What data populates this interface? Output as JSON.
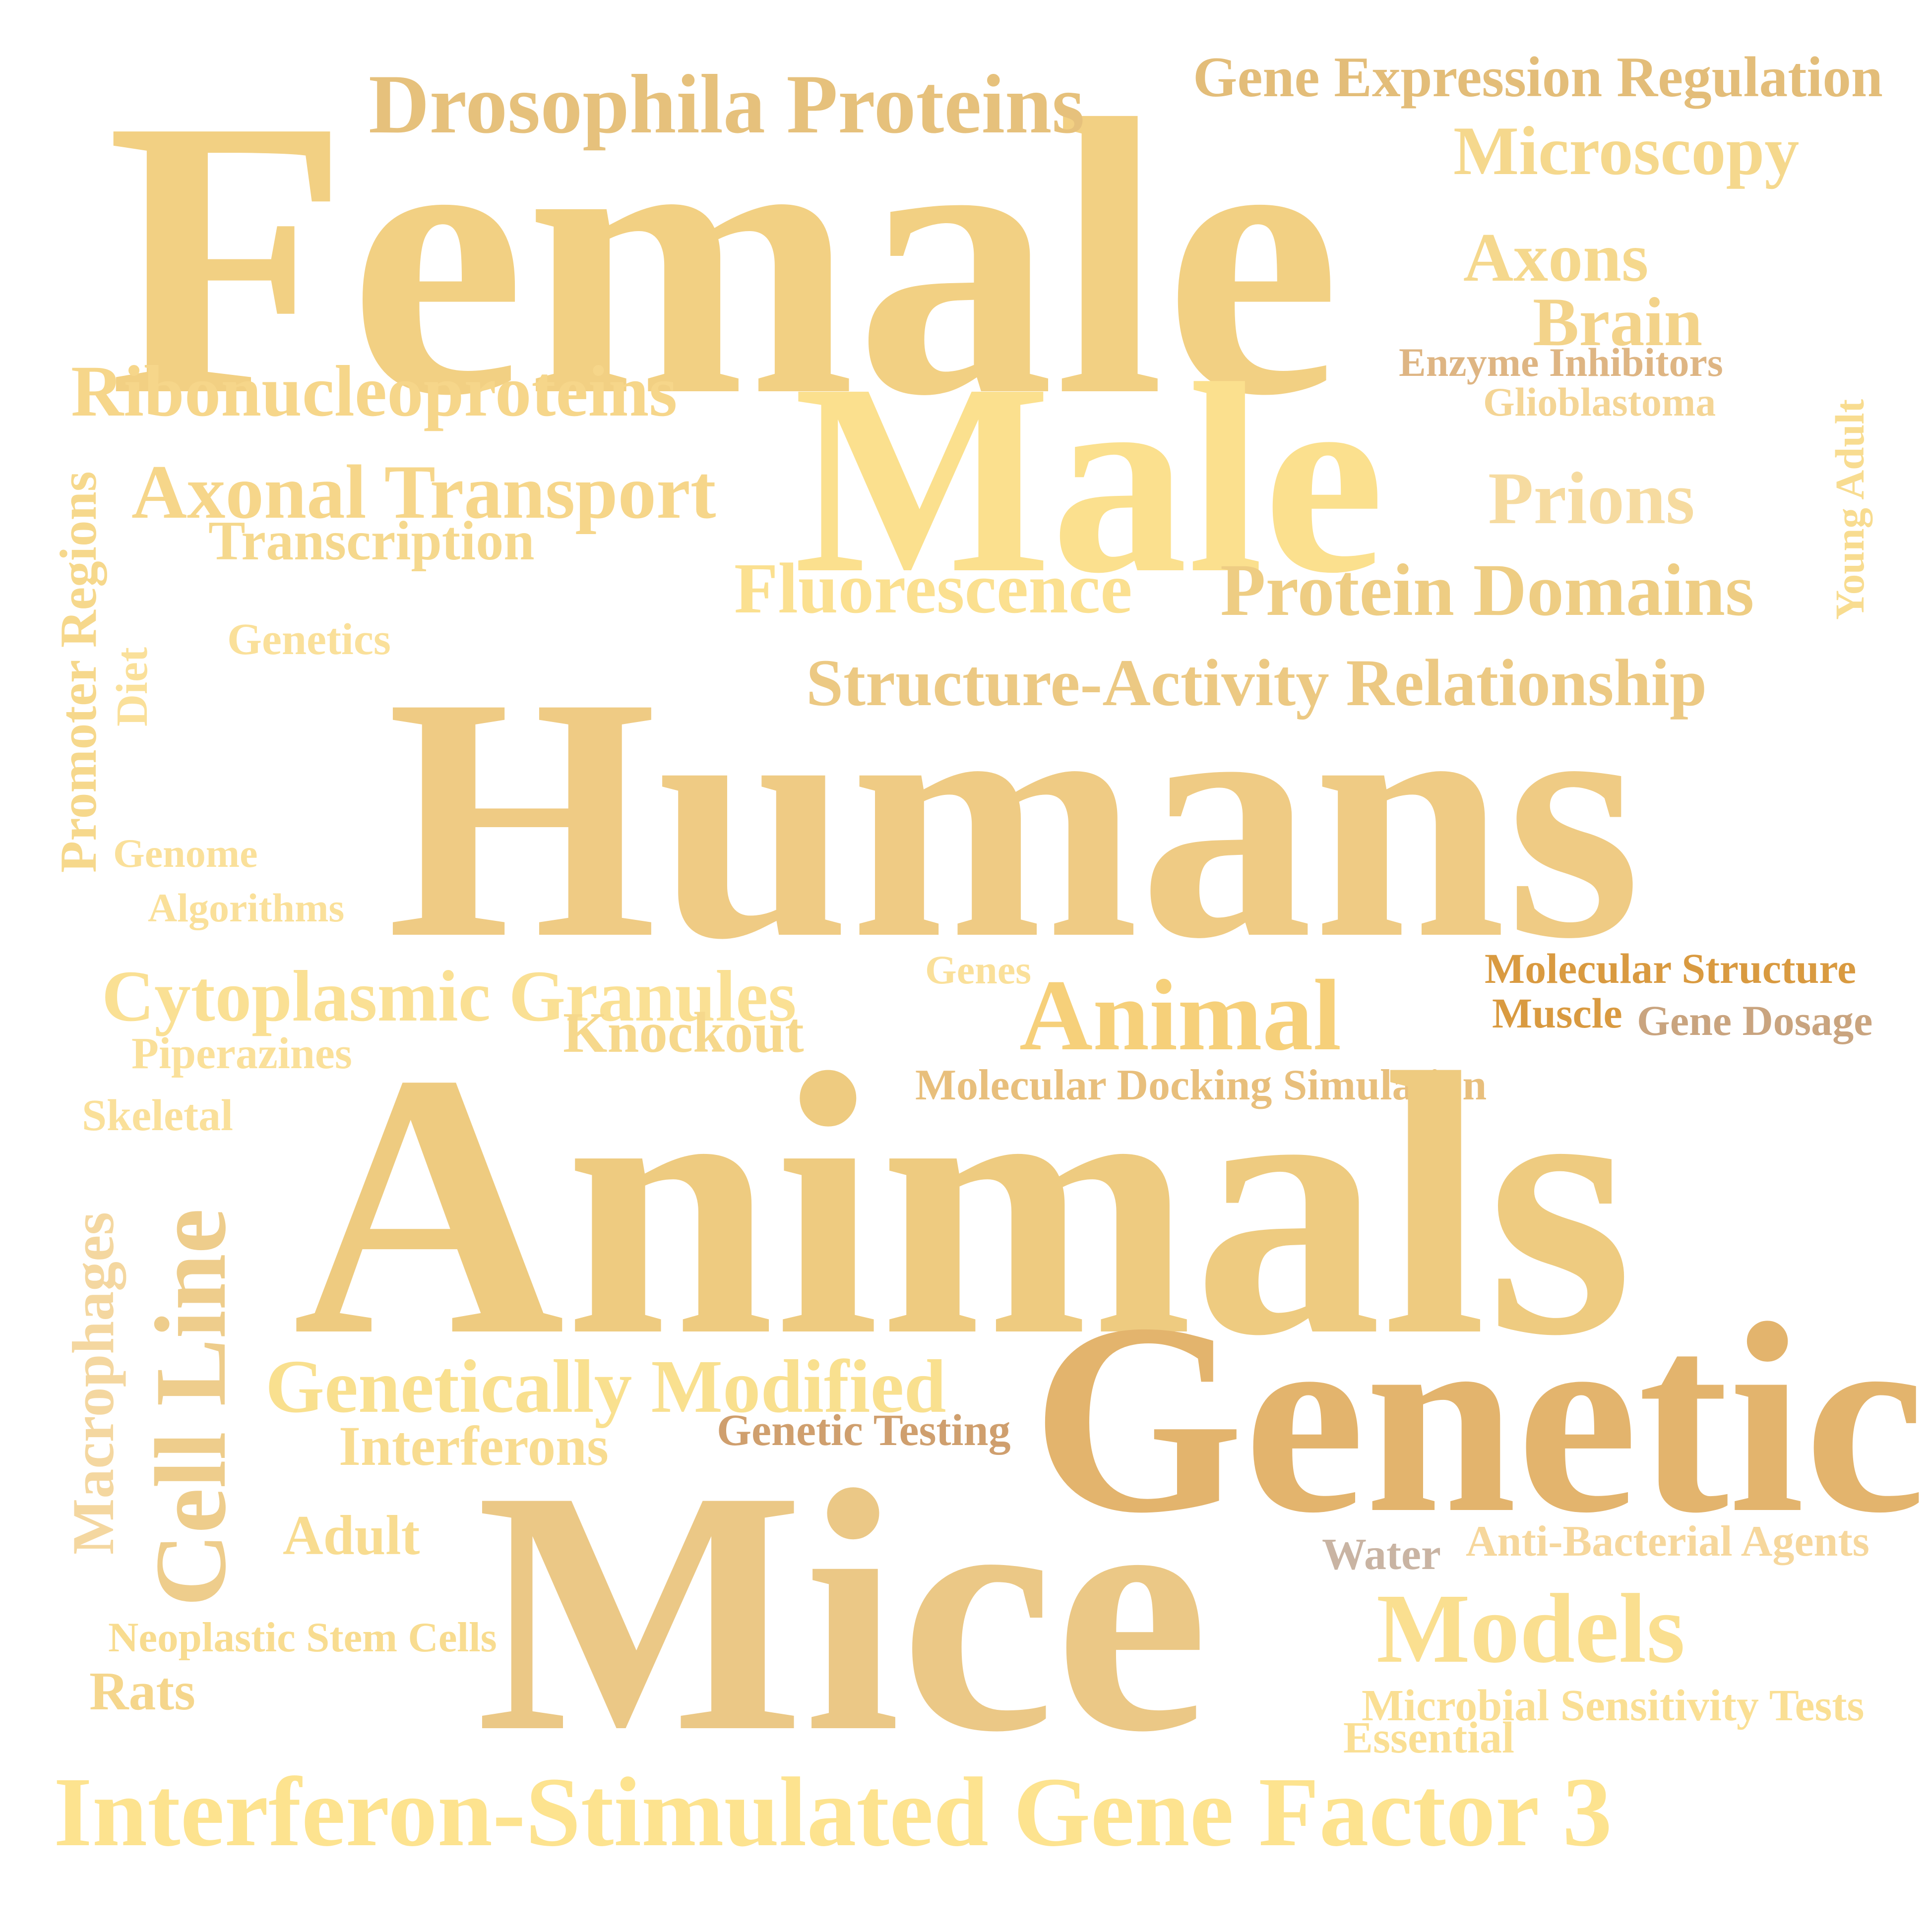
{
  "words": [
    {
      "text": "Female",
      "color": "#f2d083"
    },
    {
      "text": "Drosophila Proteins",
      "color": "#e6c17c"
    },
    {
      "text": "Gene Expression Regulation",
      "color": "#e3bd79"
    },
    {
      "text": "Microscopy",
      "color": "#f5d88d"
    },
    {
      "text": "Axons",
      "color": "#f5d88d"
    },
    {
      "text": "Brain",
      "color": "#f3d38a"
    },
    {
      "text": "Enzyme Inhibitors",
      "color": "#deb583"
    },
    {
      "text": "Glioblastoma",
      "color": "#f4d595"
    },
    {
      "text": "Ribonucleoproteins",
      "color": "#f6d68a"
    },
    {
      "text": "Male",
      "color": "#fbe08e"
    },
    {
      "text": "Young Adult",
      "color": "#f8dc90"
    },
    {
      "text": "Axonal Transport",
      "color": "#f6d68a"
    },
    {
      "text": "Transcription",
      "color": "#f5d88d"
    },
    {
      "text": "Prions",
      "color": "#f6dba0"
    },
    {
      "text": "Promoter Regions",
      "color": "#f6d88c"
    },
    {
      "text": "Fluorescence",
      "color": "#fbe090"
    },
    {
      "text": "Protein Domains",
      "color": "#eecd83"
    },
    {
      "text": "Genetics",
      "color": "#fae09a"
    },
    {
      "text": "Diet",
      "color": "#fae09a"
    },
    {
      "text": "Structure-Activity Relationship",
      "color": "#ecc983"
    },
    {
      "text": "Humans",
      "color": "#efcb84"
    },
    {
      "text": "Genome",
      "color": "#fae09a"
    },
    {
      "text": "Algorithms",
      "color": "#fae09a"
    },
    {
      "text": "Cytoplasmic Granules",
      "color": "#fae094"
    },
    {
      "text": "Genes",
      "color": "#fae09a"
    },
    {
      "text": "Molecular Structure",
      "color": "#d99a40"
    },
    {
      "text": "Animal",
      "color": "#f6d07a"
    },
    {
      "text": "Muscle",
      "color": "#d99a40"
    },
    {
      "text": "Gene Dosage",
      "color": "#c9a47f"
    },
    {
      "text": "Knockout",
      "color": "#f6d88c"
    },
    {
      "text": "Piperazines",
      "color": "#fae09a"
    },
    {
      "text": "Molecular Docking Simulation",
      "color": "#e8bf7c"
    },
    {
      "text": "Skeletal",
      "color": "#fae09a"
    },
    {
      "text": "Animals",
      "color": "#eecb80"
    },
    {
      "text": "Cell Line",
      "color": "#eecd8c"
    },
    {
      "text": "Macrophages",
      "color": "#f4d7a0"
    },
    {
      "text": "Genetically Modified",
      "color": "#f9e08f"
    },
    {
      "text": "Genetic",
      "color": "#e3b46d"
    },
    {
      "text": "Genetic Testing",
      "color": "#cf9f6e"
    },
    {
      "text": "Interferons",
      "color": "#f8dc90"
    },
    {
      "text": "Adult",
      "color": "#f8dc90"
    },
    {
      "text": "Mice",
      "color": "#ebc886"
    },
    {
      "text": "Water",
      "color": "#c9b4a3"
    },
    {
      "text": "Anti-Bacterial Agents",
      "color": "#f6d79c"
    },
    {
      "text": "Neoplastic Stem Cells",
      "color": "#f8dc90"
    },
    {
      "text": "Models",
      "color": "#fadf90"
    },
    {
      "text": "Rats",
      "color": "#f5d68c"
    },
    {
      "text": "Microbial Sensitivity Tests",
      "color": "#fadf94"
    },
    {
      "text": "Essential",
      "color": "#fadf94"
    },
    {
      "text": "Interferon-Stimulated Gene Factor 3",
      "color": "#fde38f"
    }
  ]
}
